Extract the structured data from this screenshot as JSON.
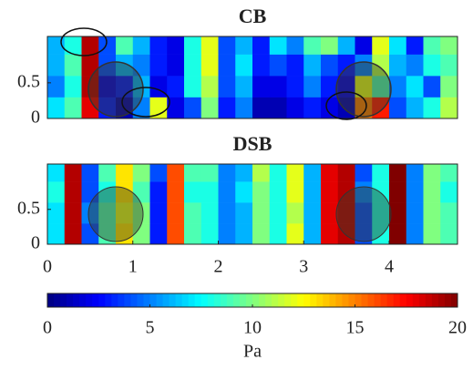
{
  "chart_data": [
    {
      "type": "heatmap",
      "title": "CB",
      "x_bins": [
        0,
        0.2,
        0.4,
        0.6,
        0.8,
        1.0,
        1.2,
        1.4,
        1.6,
        1.8,
        2.0,
        2.2,
        2.4,
        2.6,
        2.8,
        3.0,
        3.2,
        3.4,
        3.6,
        3.8,
        4.0,
        4.2,
        4.4,
        4.6,
        4.8
      ],
      "y_bins": [
        0,
        0.3,
        0.6,
        0.9,
        1.15
      ],
      "values": [
        [
          7,
          9,
          18,
          3,
          1,
          5,
          12,
          2,
          4,
          10,
          3,
          5,
          1,
          1,
          2,
          3,
          2,
          1,
          15,
          17,
          4,
          6,
          8,
          11
        ],
        [
          5,
          8,
          19,
          2,
          3,
          6,
          2,
          3,
          8,
          11,
          4,
          6,
          2,
          2,
          3,
          5,
          3,
          2,
          12,
          9,
          5,
          7,
          4,
          10
        ],
        [
          6,
          9,
          19,
          4,
          6,
          5,
          3,
          2,
          8,
          12,
          4,
          7,
          3,
          4,
          3,
          6,
          4,
          3,
          5,
          11,
          6,
          5,
          8,
          9
        ],
        [
          6,
          8,
          19,
          4,
          9,
          6,
          3,
          2,
          8,
          12,
          4,
          6,
          3,
          7,
          5,
          9,
          10,
          6,
          2,
          12,
          7,
          3,
          9,
          10
        ]
      ],
      "xlim": [
        0,
        4.8
      ],
      "ylim": [
        0,
        1.15
      ],
      "yticks": [
        0,
        0.5
      ]
    },
    {
      "type": "heatmap",
      "title": "DSB",
      "x_bins": [
        0,
        0.2,
        0.4,
        0.6,
        0.8,
        1.0,
        1.2,
        1.4,
        1.6,
        1.8,
        2.0,
        2.2,
        2.4,
        2.6,
        2.8,
        3.0,
        3.2,
        3.4,
        3.6,
        3.8,
        4.0,
        4.2,
        4.4,
        4.6,
        4.8
      ],
      "y_bins": [
        0,
        0.3,
        0.6,
        0.9,
        1.15
      ],
      "values": [
        [
          7,
          19,
          4,
          9,
          13,
          10,
          3,
          16,
          9,
          8,
          5,
          6,
          10,
          8,
          12,
          6,
          18,
          19,
          4,
          8,
          20,
          5,
          10,
          9
        ],
        [
          7,
          19,
          5,
          9,
          12,
          10,
          3,
          16,
          9,
          8,
          5,
          6,
          10,
          8,
          11,
          6,
          18,
          19,
          4,
          8,
          20,
          5,
          10,
          9
        ],
        [
          8,
          19,
          4,
          8,
          13,
          9,
          3,
          16,
          8,
          8,
          5,
          7,
          10,
          8,
          12,
          6,
          18,
          19,
          5,
          8,
          20,
          5,
          10,
          8
        ],
        [
          7,
          19,
          4,
          9,
          13,
          10,
          4,
          16,
          9,
          9,
          5,
          6,
          11,
          8,
          12,
          6,
          18,
          19,
          4,
          8,
          20,
          5,
          10,
          9
        ]
      ],
      "xlim": [
        0,
        4.8
      ],
      "ylim": [
        0,
        1.15
      ],
      "xticks": [
        0,
        1,
        2,
        3,
        4
      ],
      "yticks": [
        0,
        0.5
      ]
    },
    {
      "type": "colorbar",
      "clim": [
        0,
        20
      ],
      "ticks": [
        0,
        5,
        10,
        15,
        20
      ],
      "label": "Pa"
    }
  ]
}
